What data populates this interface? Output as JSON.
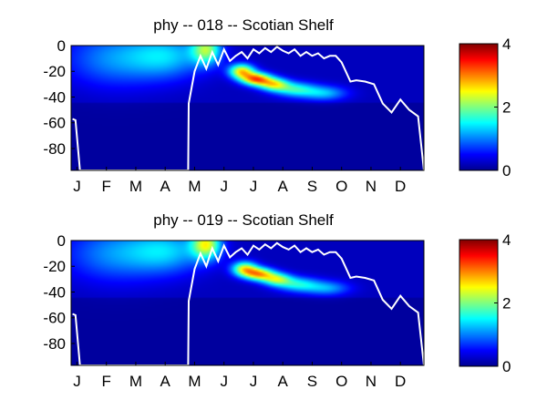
{
  "chart_data": [
    {
      "type": "heatmap",
      "title": "phy -- 018 -- Scotian Shelf",
      "xticklabels": [
        "J",
        "F",
        "M",
        "A",
        "M",
        "J",
        "J",
        "A",
        "S",
        "O",
        "N",
        "D"
      ],
      "yticks": [
        0,
        -20,
        -40,
        -60,
        -80
      ],
      "ylim": [
        -97,
        0
      ],
      "colorbar": {
        "ticks": [
          0,
          2,
          4
        ],
        "clim": [
          0,
          4
        ],
        "colormap": "jet"
      },
      "features": [
        {
          "month": 4.6,
          "depth": -3,
          "value": 1.7,
          "sx": 0.35,
          "sd": 8
        },
        {
          "month": 5.8,
          "depth": -20,
          "value": 2.3,
          "sx": 0.3,
          "sd": 4
        },
        {
          "month": 6.3,
          "depth": -26,
          "value": 2.7,
          "sx": 0.35,
          "sd": 3.5
        },
        {
          "month": 6.9,
          "depth": -30,
          "value": 1.9,
          "sx": 0.35,
          "sd": 3.5
        },
        {
          "month": 7.6,
          "depth": -34,
          "value": 1.3,
          "sx": 0.5,
          "sd": 4
        },
        {
          "month": 8.6,
          "depth": -37,
          "value": 1.0,
          "sx": 0.55,
          "sd": 4
        },
        {
          "month": 1.5,
          "depth": -10,
          "value": 0.8,
          "sx": 1.2,
          "sd": 15
        },
        {
          "month": 3.3,
          "depth": -8,
          "value": 0.9,
          "sx": 0.9,
          "sd": 12
        }
      ],
      "mld": {
        "months": [
          0.05,
          0.15,
          0.3,
          3.98,
          4.0,
          4.2,
          4.4,
          4.6,
          4.8,
          5.0,
          5.2,
          5.4,
          5.6,
          5.8,
          6.0,
          6.2,
          6.4,
          6.6,
          6.8,
          7.0,
          7.2,
          7.4,
          7.6,
          7.8,
          8.0,
          8.2,
          8.4,
          8.6,
          8.8,
          9.0,
          9.2,
          9.5,
          9.7,
          10.0,
          10.3,
          10.6,
          10.9,
          11.2,
          11.5,
          11.8,
          12.0
        ],
        "depths": [
          -57,
          -58,
          -97,
          -97,
          -45,
          -20,
          -8,
          -18,
          -5,
          -15,
          -3,
          -12,
          -8,
          -5,
          -10,
          -3,
          -6,
          -2,
          -5,
          -1,
          -4,
          -6,
          -3,
          -8,
          -5,
          -8,
          -6,
          -10,
          -8,
          -8,
          -13,
          -28,
          -27,
          -28,
          -30,
          -45,
          -52,
          -42,
          -50,
          -55,
          -97
        ]
      }
    },
    {
      "type": "heatmap",
      "title": "phy -- 019 -- Scotian Shelf",
      "xticklabels": [
        "J",
        "F",
        "M",
        "A",
        "M",
        "J",
        "J",
        "A",
        "S",
        "O",
        "N",
        "D"
      ],
      "yticks": [
        0,
        -20,
        -40,
        -60,
        -80
      ],
      "ylim": [
        -97,
        0
      ],
      "colorbar": {
        "ticks": [
          0,
          2,
          4
        ],
        "clim": [
          0,
          4
        ],
        "colormap": "jet"
      },
      "features": [
        {
          "month": 4.6,
          "depth": -3,
          "value": 2.0,
          "sx": 0.35,
          "sd": 8
        },
        {
          "month": 5.9,
          "depth": -22,
          "value": 2.1,
          "sx": 0.3,
          "sd": 4
        },
        {
          "month": 6.4,
          "depth": -26,
          "value": 2.3,
          "sx": 0.35,
          "sd": 3.5
        },
        {
          "month": 7.0,
          "depth": -30,
          "value": 1.7,
          "sx": 0.35,
          "sd": 3.5
        },
        {
          "month": 7.7,
          "depth": -34,
          "value": 1.2,
          "sx": 0.5,
          "sd": 4
        },
        {
          "month": 8.7,
          "depth": -37,
          "value": 0.9,
          "sx": 0.55,
          "sd": 4
        },
        {
          "month": 1.5,
          "depth": -10,
          "value": 0.8,
          "sx": 1.2,
          "sd": 15
        },
        {
          "month": 3.3,
          "depth": -8,
          "value": 0.9,
          "sx": 0.9,
          "sd": 12
        }
      ],
      "mld": {
        "months": [
          0.05,
          0.15,
          0.3,
          3.98,
          4.0,
          4.2,
          4.4,
          4.6,
          4.8,
          5.0,
          5.2,
          5.4,
          5.6,
          5.8,
          6.0,
          6.2,
          6.4,
          6.6,
          6.8,
          7.0,
          7.2,
          7.4,
          7.6,
          7.8,
          8.0,
          8.2,
          8.4,
          8.6,
          8.8,
          9.0,
          9.2,
          9.5,
          9.7,
          10.0,
          10.3,
          10.6,
          10.9,
          11.2,
          11.5,
          11.8,
          12.0
        ],
        "depths": [
          -57,
          -58,
          -97,
          -97,
          -47,
          -22,
          -10,
          -20,
          -6,
          -16,
          -4,
          -13,
          -9,
          -6,
          -11,
          -4,
          -7,
          -3,
          -6,
          -2,
          -5,
          -7,
          -4,
          -9,
          -6,
          -9,
          -7,
          -11,
          -9,
          -9,
          -14,
          -29,
          -28,
          -29,
          -31,
          -46,
          -53,
          -43,
          -51,
          -56,
          -97
        ]
      }
    }
  ]
}
